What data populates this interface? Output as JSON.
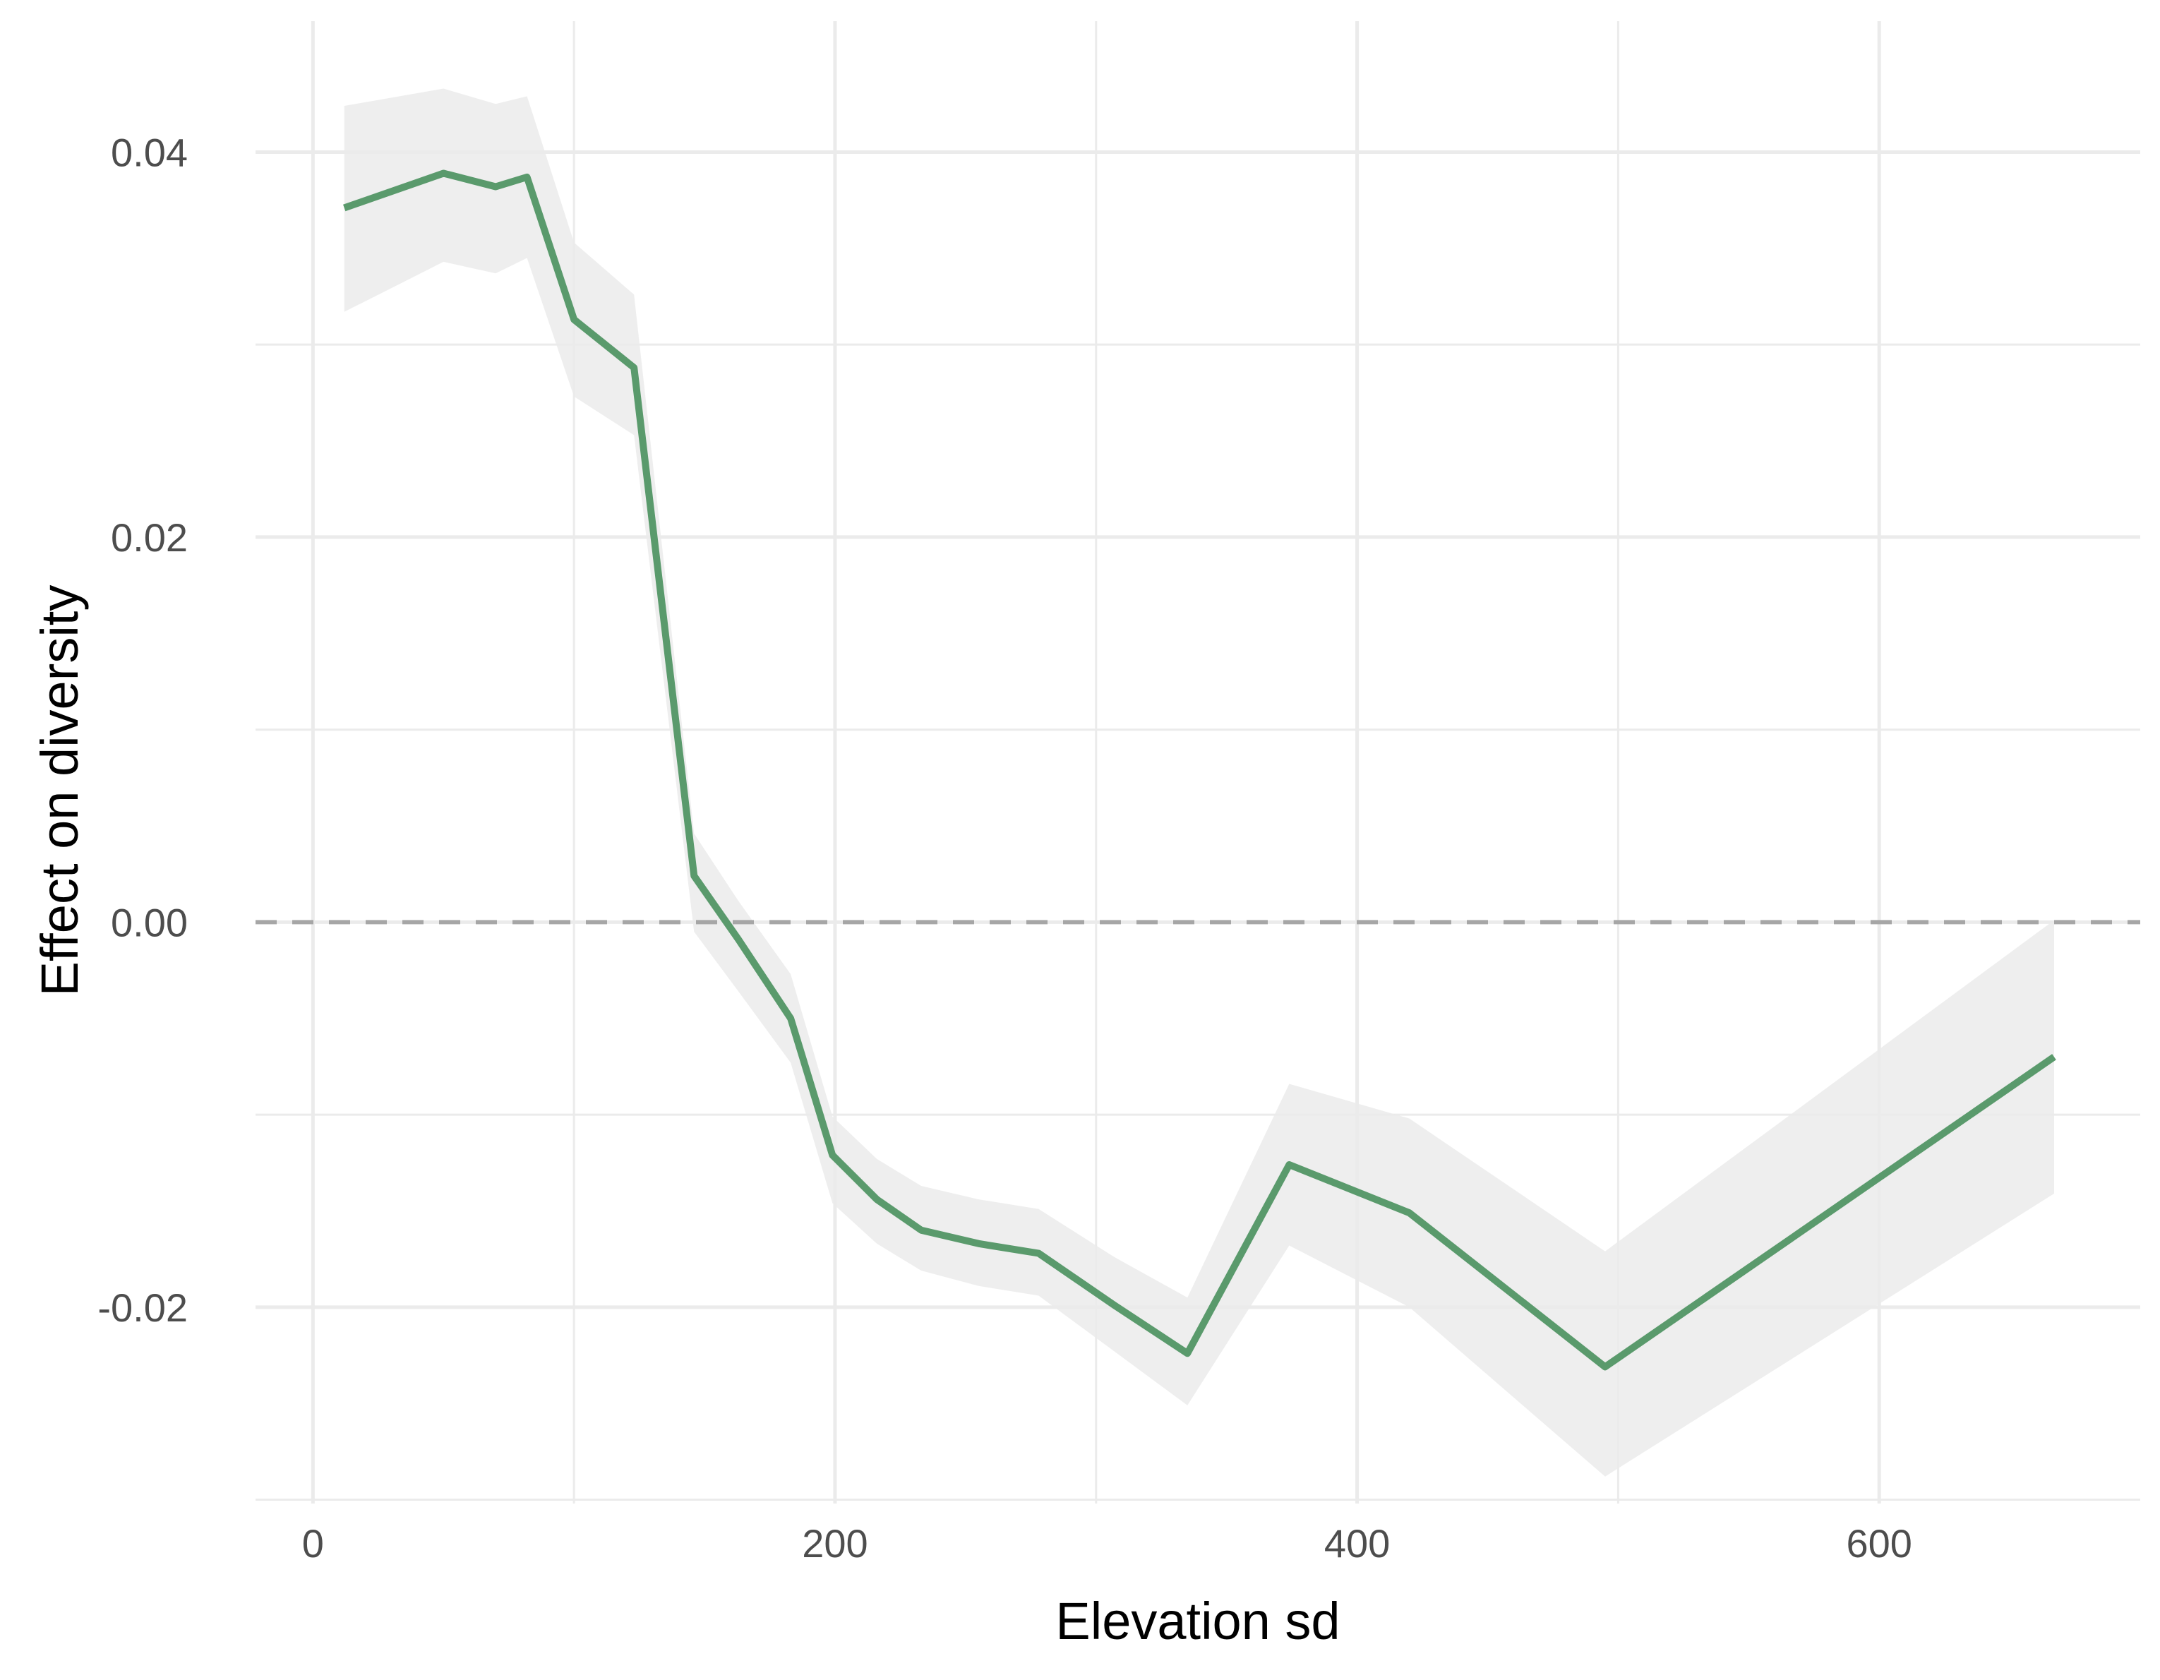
{
  "chart_data": {
    "type": "line",
    "title": "",
    "xlabel": "Elevation sd",
    "ylabel": "Effect on diversity",
    "xlim": [
      -22,
      700
    ],
    "ylim": [
      -0.0302,
      0.0468
    ],
    "x_ticks": [
      0,
      200,
      400,
      600
    ],
    "x_tick_labels": [
      "0",
      "200",
      "400",
      "600"
    ],
    "y_ticks": [
      -0.02,
      0.0,
      0.02,
      0.04
    ],
    "y_tick_labels": [
      "-0.02",
      "0.00",
      "0.02",
      "0.04"
    ],
    "x_minor_ticks": [
      100,
      300,
      500
    ],
    "y_minor_ticks": [
      -0.03,
      -0.01,
      0.01,
      0.03
    ],
    "grid": true,
    "reference_line": {
      "y": 0.0,
      "style": "dashed",
      "color": "#a6a6a6"
    },
    "line_color": "#5a9a6c",
    "band_color": "#ebebeb",
    "series": [
      {
        "x": [
          12,
          50,
          70,
          82,
          100,
          123,
          146,
          163,
          183,
          199,
          216,
          233,
          255,
          278,
          307,
          335,
          374,
          420,
          495,
          667
        ],
        "y": [
          0.0371,
          0.0389,
          0.0382,
          0.0387,
          0.0313,
          0.0288,
          0.0024,
          -0.0009,
          -0.005,
          -0.0121,
          -0.0144,
          -0.016,
          -0.0167,
          -0.0172,
          -0.0199,
          -0.0224,
          -0.0126,
          -0.0151,
          -0.0231,
          -0.007
        ],
        "lower": [
          0.0317,
          0.0343,
          0.0337,
          0.0345,
          0.0273,
          0.0253,
          -0.0005,
          -0.0036,
          -0.0073,
          -0.0146,
          -0.0167,
          -0.0181,
          -0.0189,
          -0.0194,
          -0.0223,
          -0.0251,
          -0.0168,
          -0.02,
          -0.0288,
          -0.0141
        ],
        "upper": [
          0.0424,
          0.0433,
          0.0425,
          0.0429,
          0.0353,
          0.0326,
          0.0046,
          0.0011,
          -0.0027,
          -0.0101,
          -0.0123,
          -0.0137,
          -0.0144,
          -0.0149,
          -0.0174,
          -0.0195,
          -0.0084,
          -0.0102,
          -0.0171,
          0.0001
        ]
      }
    ]
  }
}
